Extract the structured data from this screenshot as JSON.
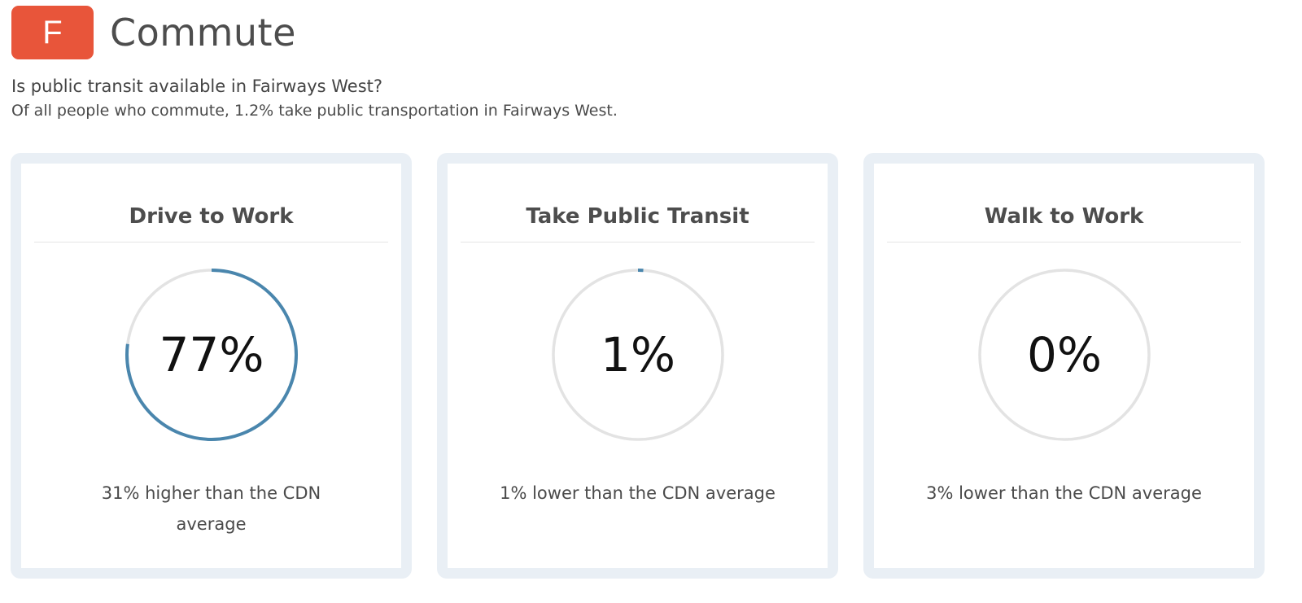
{
  "header": {
    "grade": "F",
    "title": "Commute",
    "grade_color": "#e8553a"
  },
  "question": "Is public transit available in Fairways West?",
  "summary": "Of all people who commute, 1.2% take public transportation in Fairways West.",
  "ring_colors": {
    "progress": "#4a86ad",
    "track": "#e3e3e3"
  },
  "cards": [
    {
      "title": "Drive to Work",
      "value": "77%",
      "fraction": 0.77,
      "comparison": "31% higher than the CDN average"
    },
    {
      "title": "Take Public Transit",
      "value": "1%",
      "fraction": 0.01,
      "comparison": "1% lower than the CDN average"
    },
    {
      "title": "Walk to Work",
      "value": "0%",
      "fraction": 0.0,
      "comparison": "3% lower than the CDN average"
    }
  ]
}
